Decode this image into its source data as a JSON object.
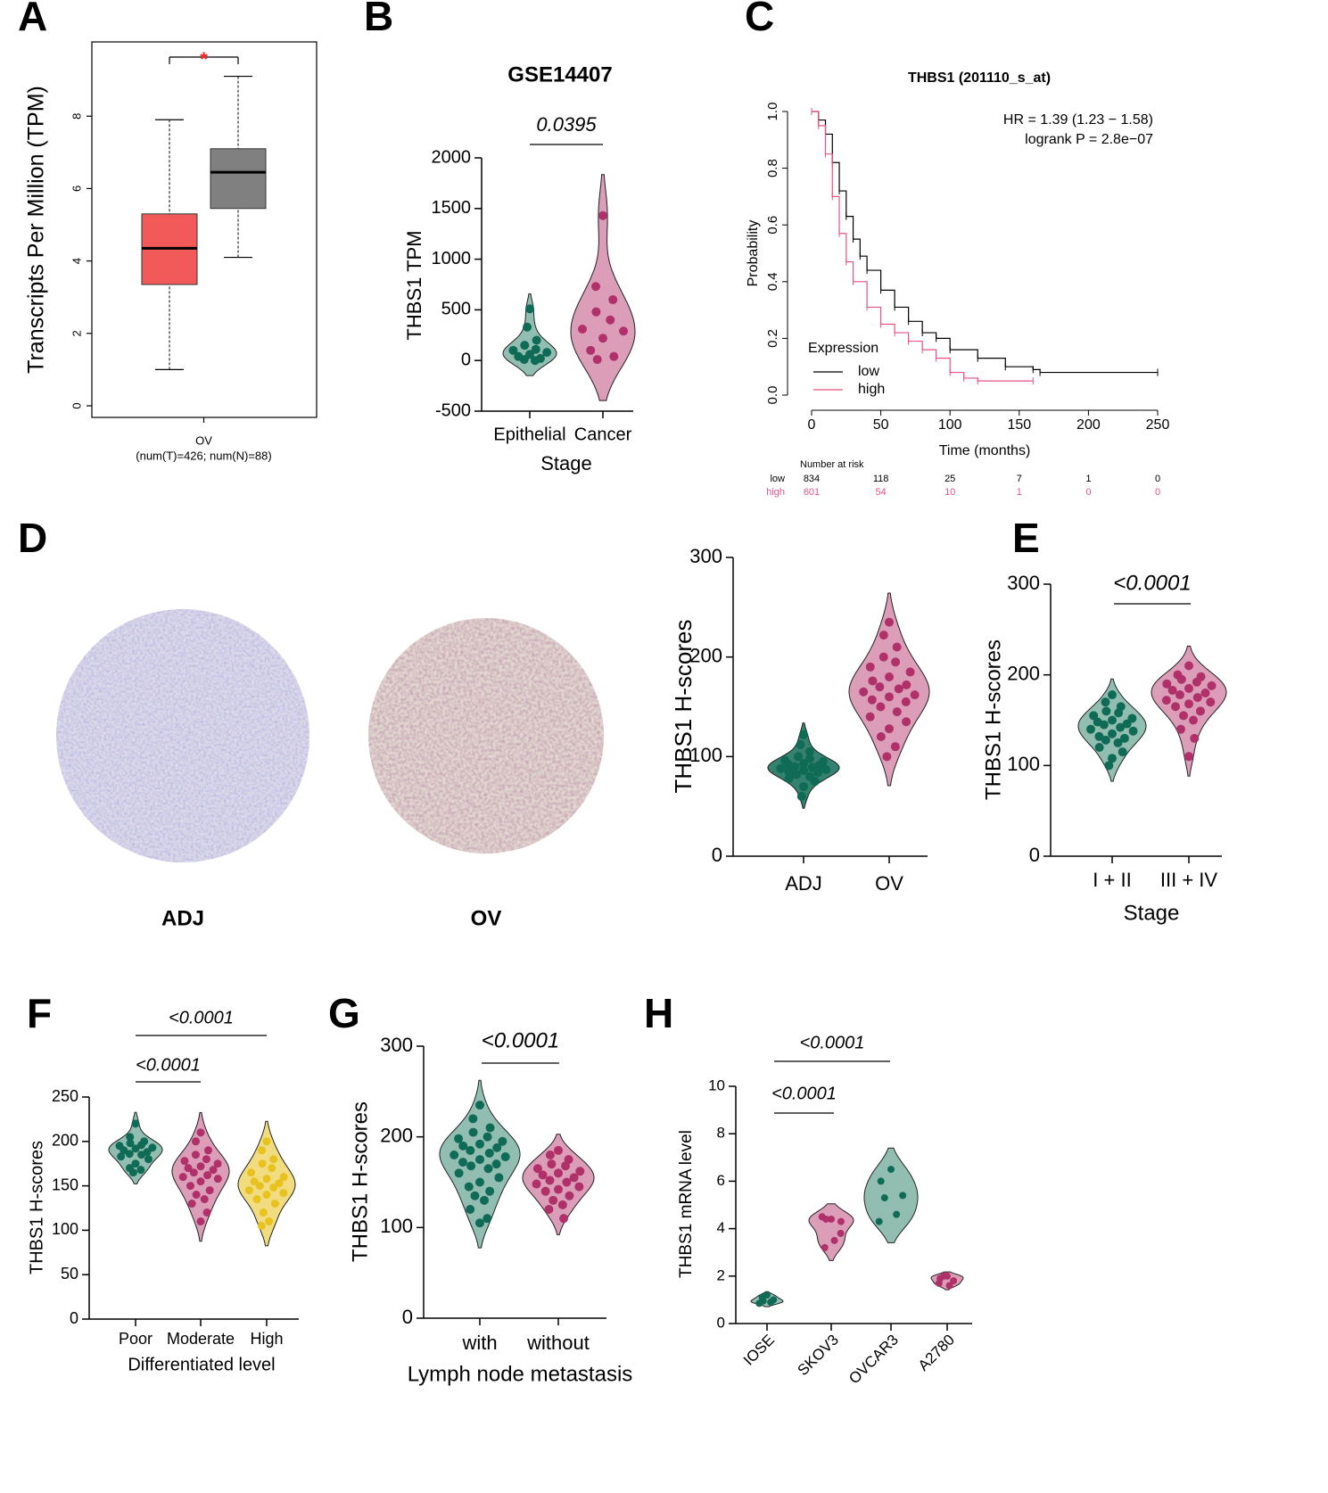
{
  "chart_data": [
    {
      "label": "A",
      "type": "box",
      "y_label": "Transcripts Per Million (TPM)",
      "categories": [
        "OV"
      ],
      "category_note": "(num(T)=426; num(N)=88)",
      "ylim": [
        -0.32,
        10.05
      ],
      "yticks": [
        0,
        2,
        4,
        6,
        8
      ],
      "annotations": [
        "*"
      ],
      "annotation_color": "#ff2020",
      "boxes": [
        {
          "color": "#f25a5a",
          "min": 1.0,
          "q1": 3.35,
          "median": 4.35,
          "q3": 5.3,
          "max": 7.9
        },
        {
          "color": "#808080",
          "min": 4.1,
          "q1": 5.45,
          "median": 6.45,
          "q3": 7.1,
          "max": 9.1
        }
      ]
    },
    {
      "label": "B",
      "type": "violin",
      "title": "GSE14407",
      "y_label": "THBS1 TPM",
      "x_label": "Stage",
      "categories": [
        "Epithelial",
        "Cancer"
      ],
      "ylim": [
        -500,
        2000
      ],
      "yticks": [
        -500,
        0,
        500,
        1000,
        1500,
        2000
      ],
      "annotations": [
        "0.0395"
      ],
      "colors": [
        "#0f6b55",
        "#b0306a"
      ],
      "fills": [
        "#7fb3a5",
        "#d58cab"
      ],
      "values": [
        [
          510,
          330,
          200,
          150,
          110,
          100,
          80,
          60,
          40,
          20,
          10,
          0
        ],
        [
          1430,
          730,
          600,
          480,
          400,
          310,
          290,
          220,
          100,
          40,
          10
        ]
      ]
    },
    {
      "label": "C",
      "type": "km",
      "title": "THBS1 (201110_s_at)",
      "y_label": "Probability",
      "x_label": "Time (months)",
      "annotations": [
        "HR = 1.39 (1.23 − 1.58)",
        "logrank P = 2.8e−07"
      ],
      "legend_title": "Expression",
      "xlim": [
        0,
        250
      ],
      "xticks": [
        0,
        50,
        100,
        150,
        200,
        250
      ],
      "ylim": [
        0,
        1
      ],
      "yticks": [
        {
          "value": 0,
          "label": "0.0"
        },
        {
          "value": 0.2,
          "label": "0.2"
        },
        {
          "value": 0.4,
          "label": "0.4"
        },
        {
          "value": 0.6,
          "label": "0.6"
        },
        {
          "value": 0.8,
          "label": "0.8"
        },
        {
          "value": 1,
          "label": "1.0"
        }
      ],
      "series": [
        {
          "name": "low",
          "color": "#000000",
          "x": [
            0,
            5,
            10,
            15,
            20,
            25,
            30,
            35,
            40,
            50,
            60,
            70,
            80,
            90,
            100,
            120,
            140,
            160,
            165,
            250
          ],
          "values": [
            1,
            0.97,
            0.92,
            0.82,
            0.72,
            0.63,
            0.55,
            0.49,
            0.44,
            0.37,
            0.31,
            0.26,
            0.22,
            0.2,
            0.16,
            0.13,
            0.1,
            0.09,
            0.08,
            0.08
          ]
        },
        {
          "name": "high",
          "color": "#e75480",
          "x": [
            0,
            5,
            10,
            15,
            20,
            25,
            30,
            40,
            50,
            60,
            70,
            80,
            90,
            100,
            110,
            120,
            160
          ],
          "values": [
            1,
            0.95,
            0.85,
            0.7,
            0.57,
            0.47,
            0.4,
            0.31,
            0.25,
            0.22,
            0.19,
            0.16,
            0.13,
            0.08,
            0.06,
            0.05,
            0.05
          ]
        }
      ],
      "risk_table": {
        "title": "Number at risk",
        "rows": [
          {
            "name": "low",
            "values": [
              834,
              118,
              25,
              7,
              1,
              0
            ]
          },
          {
            "name": "high",
            "values": [
              601,
              54,
              10,
              1,
              0,
              0
            ]
          }
        ]
      }
    },
    {
      "label": "D",
      "type": "violin",
      "image_labels": [
        "ADJ",
        "OV"
      ],
      "y_label": "THBS1 H-scores",
      "categories": [
        "ADJ",
        "OV"
      ],
      "ylim": [
        0,
        300
      ],
      "yticks": [
        0,
        100,
        200,
        300
      ],
      "colors": [
        "#0f6b55",
        "#b0306a"
      ],
      "fills": [
        "#0f6b55",
        "#d58cab"
      ],
      "values": [
        [
          122,
          112,
          105,
          100,
          98,
          96,
          95,
          93,
          92,
          91,
          90,
          89,
          88,
          87,
          86,
          85,
          84,
          82,
          80,
          78,
          75,
          70,
          60
        ],
        [
          235,
          222,
          210,
          200,
          195,
          190,
          185,
          180,
          176,
          172,
          170,
          168,
          165,
          162,
          160,
          157,
          155,
          150,
          145,
          140,
          135,
          128,
          120,
          110,
          100
        ]
      ]
    },
    {
      "label": "E",
      "type": "violin",
      "y_label": "THBS1 H-scores",
      "x_label": "Stage",
      "categories": [
        "I + II",
        "III + IV"
      ],
      "ylim": [
        0,
        300
      ],
      "yticks": [
        0,
        100,
        200,
        300
      ],
      "annotations": [
        "<0.0001"
      ],
      "colors": [
        "#0f6b55",
        "#b0306a"
      ],
      "fills": [
        "#7fb3a5",
        "#d58cab"
      ],
      "values": [
        [
          178,
          170,
          165,
          160,
          158,
          155,
          152,
          150,
          148,
          146,
          145,
          142,
          140,
          138,
          135,
          132,
          130,
          128,
          125,
          120,
          115,
          108,
          100
        ],
        [
          210,
          200,
          198,
          195,
          192,
          190,
          188,
          185,
          183,
          180,
          178,
          175,
          172,
          170,
          168,
          165,
          160,
          155,
          150,
          140,
          130,
          110
        ]
      ]
    },
    {
      "label": "F",
      "type": "violin",
      "y_label": "THBS1 H-scores",
      "x_label": "Differentiated level",
      "categories": [
        "Poor",
        "Moderate",
        "High"
      ],
      "ylim": [
        0,
        250
      ],
      "yticks": [
        0,
        50,
        100,
        150,
        200,
        250
      ],
      "annotations": [
        "<0.0001",
        "<0.0001"
      ],
      "colors": [
        "#0f6b55",
        "#b0306a",
        "#e8c31f"
      ],
      "fills": [
        "#7fb3a5",
        "#d58cab",
        "#f0d66a"
      ],
      "values": [
        [
          220,
          205,
          200,
          198,
          196,
          195,
          193,
          192,
          190,
          188,
          186,
          185,
          183,
          180,
          175,
          170,
          168,
          165
        ],
        [
          210,
          200,
          190,
          185,
          180,
          178,
          175,
          172,
          170,
          168,
          165,
          162,
          160,
          158,
          155,
          150,
          145,
          140,
          135,
          130,
          120,
          110
        ],
        [
          200,
          190,
          180,
          175,
          170,
          165,
          160,
          158,
          155,
          153,
          150,
          148,
          145,
          142,
          140,
          135,
          130,
          120,
          110,
          105
        ]
      ]
    },
    {
      "label": "G",
      "type": "violin",
      "y_label": "THBS1 H-scores",
      "x_label": "Lymph node metastasis",
      "categories": [
        "with",
        "without"
      ],
      "ylim": [
        0,
        300
      ],
      "yticks": [
        0,
        100,
        200,
        300
      ],
      "annotations": [
        "<0.0001"
      ],
      "colors": [
        "#0f6b55",
        "#b0306a"
      ],
      "fills": [
        "#7fb3a5",
        "#d58cab"
      ],
      "values": [
        [
          235,
          220,
          210,
          205,
          200,
          198,
          195,
          192,
          190,
          188,
          185,
          182,
          180,
          178,
          175,
          172,
          170,
          168,
          165,
          160,
          155,
          150,
          145,
          140,
          135,
          130,
          120,
          110,
          105
        ],
        [
          185,
          180,
          175,
          170,
          168,
          165,
          162,
          160,
          158,
          155,
          152,
          150,
          148,
          145,
          142,
          140,
          135,
          130,
          125,
          120,
          110
        ]
      ]
    },
    {
      "label": "H",
      "type": "violin",
      "y_label": "THBS1 mRNA level",
      "categories": [
        "IOSE",
        "SKOV3",
        "OVCAR3",
        "A2780"
      ],
      "ylim": [
        0,
        10
      ],
      "yticks": [
        0,
        2,
        4,
        6,
        8,
        10
      ],
      "annotations": [
        "<0.0001",
        "<0.0001"
      ],
      "colors": [
        "#0f6b55",
        "#b0306a",
        "#0f6b55",
        "#b0306a"
      ],
      "fills": [
        "#7fb3a5",
        "#d58cab",
        "#7fb3a5",
        "#d58cab"
      ],
      "values": [
        [
          1.2,
          1.1,
          1.0,
          0.95,
          0.9,
          0.85
        ],
        [
          4.4,
          4.5,
          4.3,
          4.4,
          3.5,
          3.2,
          3.8
        ],
        [
          6.5,
          6.0,
          5.4,
          5.3,
          4.6,
          4.3
        ],
        [
          2.0,
          1.9,
          1.8,
          2.0,
          1.6,
          1.7
        ]
      ]
    }
  ]
}
